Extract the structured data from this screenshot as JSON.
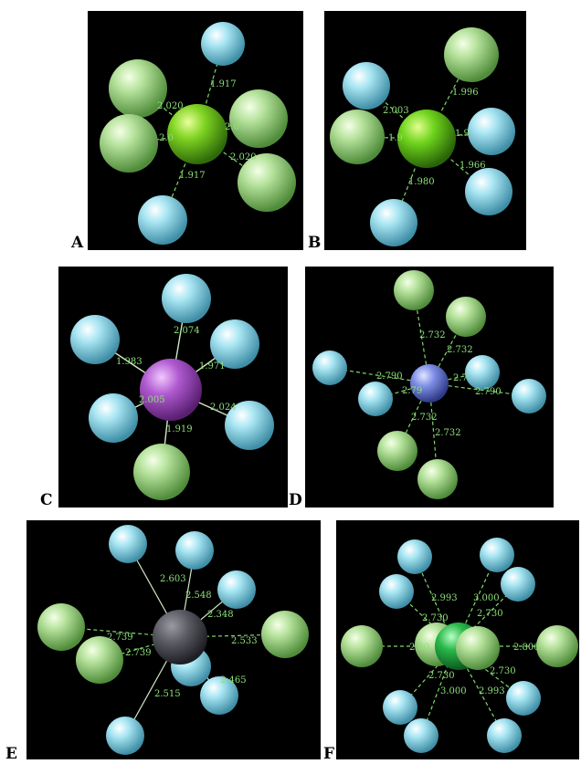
{
  "colors": {
    "background": "#000000",
    "cyan_atom": "#8fd8e8",
    "green_atom": "#a6d98c",
    "bond_label": "#8ee07a",
    "center_A": "#7ed321",
    "center_B": "#6fd41c",
    "center_C": "#b05ad0",
    "center_D": "#7f8fe6",
    "center_E": "#5a5a62",
    "center_F": "#29b84a"
  },
  "panels": [
    {
      "id": "A",
      "label": "A",
      "bonds": [
        "2.020",
        "1.917",
        "2.0",
        "2.0",
        "1.917",
        "2.020"
      ]
    },
    {
      "id": "B",
      "label": "B",
      "bonds": [
        "2.003",
        "1.996",
        "1.9",
        "1.9",
        "1.966",
        "1.980"
      ]
    },
    {
      "id": "C",
      "label": "C",
      "bonds": [
        "2.074",
        "1.983",
        "1.971",
        "2.005",
        "2.024",
        "1.919"
      ]
    },
    {
      "id": "D",
      "label": "D",
      "bonds": [
        "2.732",
        "2.732",
        "2.790",
        "2.79",
        "2.7",
        "2.790",
        "2.732",
        "2.732"
      ]
    },
    {
      "id": "E",
      "label": "E",
      "bonds": [
        "2.603",
        "2.548",
        "2.348",
        "2.739",
        "2.739",
        "2.533",
        "2.515",
        "2.465"
      ]
    },
    {
      "id": "F",
      "label": "F",
      "bonds": [
        "2.993",
        "3.000",
        "2.730",
        "2.730",
        "2.80",
        "2.806",
        "2.730",
        "2.730",
        "3.000",
        "2.993"
      ]
    }
  ]
}
